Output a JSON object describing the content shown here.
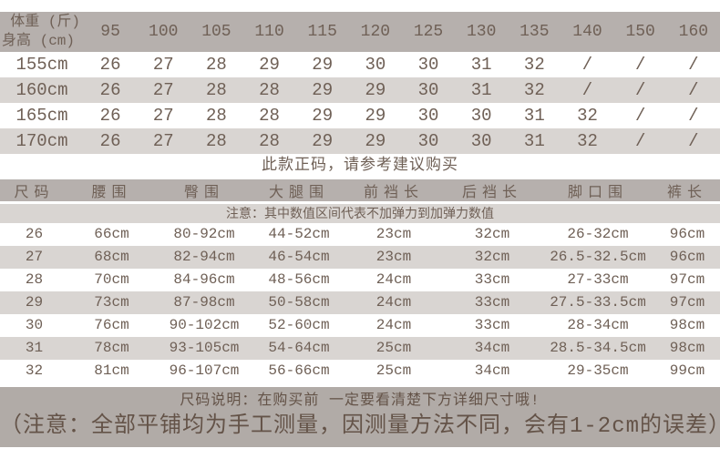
{
  "colors": {
    "band": "#b6b0ad",
    "stripe": "#d9d5d2",
    "footer_band": "#b1aba7",
    "ink": "#6f6056",
    "footer_ink": "#645348"
  },
  "size_chart": {
    "corner_top": "体重 (斤)",
    "corner_bottom": "身高 (cm)",
    "weight_columns": [
      "95",
      "100",
      "105",
      "110",
      "115",
      "120",
      "125",
      "130",
      "135",
      "140",
      "150",
      "160"
    ],
    "rows": [
      {
        "height": "155cm",
        "values": [
          "26",
          "27",
          "28",
          "29",
          "29",
          "30",
          "30",
          "31",
          "32",
          "/",
          "/",
          "/"
        ]
      },
      {
        "height": "160cm",
        "values": [
          "26",
          "27",
          "28",
          "28",
          "29",
          "29",
          "30",
          "31",
          "32",
          "/",
          "/",
          "/"
        ]
      },
      {
        "height": "165cm",
        "values": [
          "26",
          "27",
          "28",
          "28",
          "29",
          "29",
          "30",
          "30",
          "31",
          "32",
          "/",
          "/"
        ]
      },
      {
        "height": "170cm",
        "values": [
          "26",
          "27",
          "28",
          "28",
          "29",
          "29",
          "30",
          "30",
          "31",
          "32",
          "/",
          "/"
        ]
      }
    ],
    "note": "此款正码，请参考建议购买"
  },
  "measurements": {
    "headers": [
      "尺码",
      "腰围",
      "臀围",
      "大腿围",
      "前裆长",
      "后裆长",
      "脚口围",
      "裤长"
    ],
    "note": "注意：其中数值区间代表不加弹力到加弹力数值",
    "rows": [
      [
        "26",
        "66cm",
        "80-92cm",
        "44-52cm",
        "23cm",
        "32cm",
        "26-32cm",
        "96cm"
      ],
      [
        "27",
        "68cm",
        "82-94cm",
        "46-54cm",
        "23cm",
        "32cm",
        "26.5-32.5cm",
        "96cm"
      ],
      [
        "28",
        "70cm",
        "84-96cm",
        "48-56cm",
        "24cm",
        "33cm",
        "27-33cm",
        "97cm"
      ],
      [
        "29",
        "73cm",
        "87-98cm",
        "50-58cm",
        "24cm",
        "33cm",
        "27.5-33.5cm",
        "97cm"
      ],
      [
        "30",
        "76cm",
        "90-102cm",
        "52-60cm",
        "24cm",
        "33cm",
        "28-34cm",
        "98cm"
      ],
      [
        "31",
        "78cm",
        "93-105cm",
        "54-64cm",
        "25cm",
        "34cm",
        "28.5-34.5cm",
        "98cm"
      ],
      [
        "32",
        "81cm",
        "96-107cm",
        "56-66cm",
        "25cm",
        "34cm",
        "29-35cm",
        "99cm"
      ]
    ]
  },
  "footer": {
    "size_note": "尺码说明：在购买前 一定要看清楚下方详细尺寸哦!",
    "measure_note": "（注意：全部平铺均为手工测量，因测量方法不同，会有1-2cm的误差）"
  }
}
